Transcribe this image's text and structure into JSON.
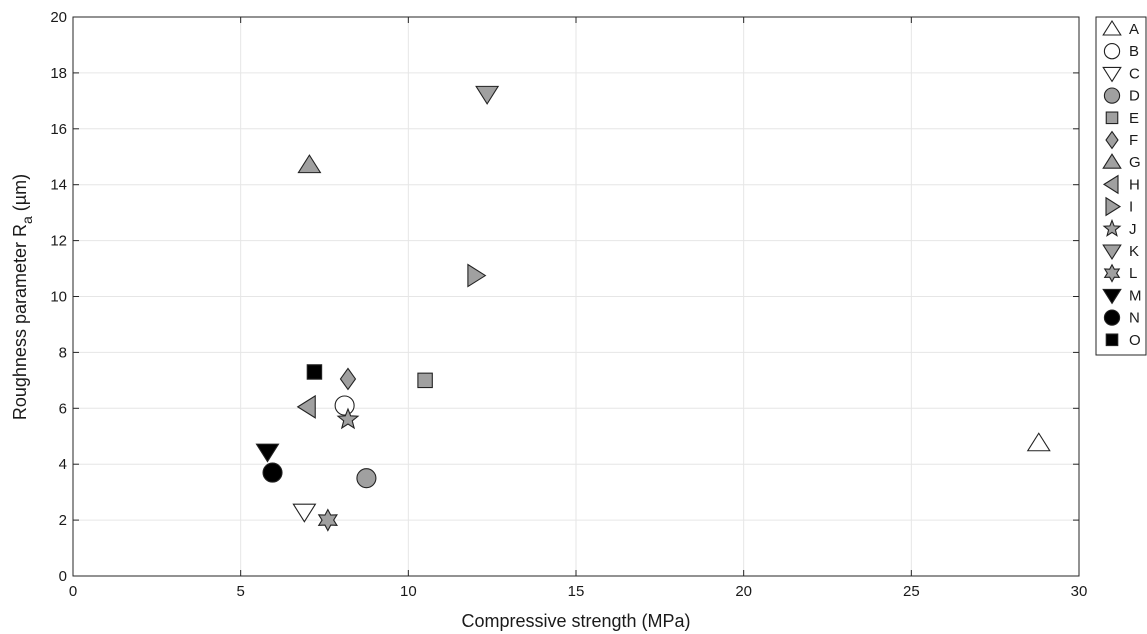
{
  "chart_data": {
    "type": "scatter",
    "xlabel": "Compressive strength (MPa)",
    "ylabel": "Roughness parameter R",
    "ylabel_sub": "a",
    "ylabel_unit": " (µm)",
    "xlim": [
      0,
      30
    ],
    "ylim": [
      0,
      20
    ],
    "xticks": [
      0,
      5,
      10,
      15,
      20,
      25,
      30
    ],
    "yticks": [
      0,
      2,
      4,
      6,
      8,
      10,
      12,
      14,
      16,
      18,
      20
    ],
    "grid": true,
    "legend_position": "outside-right",
    "colors": {
      "gray": "#a0a0a0",
      "black": "#000000",
      "white": "#ffffff",
      "grid": "#e6e6e6",
      "axis": "#262626"
    },
    "series": [
      {
        "name": "A",
        "marker": "triangle-up",
        "fill": "white",
        "points": [
          [
            28.8,
            4.75
          ]
        ]
      },
      {
        "name": "B",
        "marker": "circle",
        "fill": "white",
        "points": [
          [
            8.1,
            6.1
          ]
        ]
      },
      {
        "name": "C",
        "marker": "triangle-down",
        "fill": "white",
        "points": [
          [
            6.9,
            2.3
          ]
        ]
      },
      {
        "name": "D",
        "marker": "circle",
        "fill": "gray",
        "points": [
          [
            8.75,
            3.5
          ]
        ]
      },
      {
        "name": "E",
        "marker": "square",
        "fill": "gray",
        "points": [
          [
            10.5,
            7.0
          ]
        ]
      },
      {
        "name": "F",
        "marker": "diamond",
        "fill": "gray",
        "points": [
          [
            8.2,
            7.05
          ]
        ]
      },
      {
        "name": "G",
        "marker": "triangle-up",
        "fill": "gray",
        "points": [
          [
            7.05,
            14.7
          ]
        ]
      },
      {
        "name": "H",
        "marker": "triangle-left",
        "fill": "gray",
        "points": [
          [
            7.0,
            6.05
          ]
        ]
      },
      {
        "name": "I",
        "marker": "triangle-right",
        "fill": "gray",
        "points": [
          [
            12.0,
            10.75
          ]
        ]
      },
      {
        "name": "J",
        "marker": "star5",
        "fill": "gray",
        "points": [
          [
            8.2,
            5.6
          ]
        ]
      },
      {
        "name": "K",
        "marker": "triangle-down",
        "fill": "gray",
        "points": [
          [
            12.35,
            17.25
          ]
        ]
      },
      {
        "name": "L",
        "marker": "star6",
        "fill": "gray",
        "points": [
          [
            7.6,
            2.0
          ]
        ]
      },
      {
        "name": "M",
        "marker": "triangle-down",
        "fill": "black",
        "points": [
          [
            5.8,
            4.45
          ]
        ]
      },
      {
        "name": "N",
        "marker": "circle",
        "fill": "black",
        "points": [
          [
            5.95,
            3.7
          ]
        ]
      },
      {
        "name": "O",
        "marker": "square",
        "fill": "black",
        "points": [
          [
            7.2,
            7.3
          ]
        ]
      }
    ]
  }
}
